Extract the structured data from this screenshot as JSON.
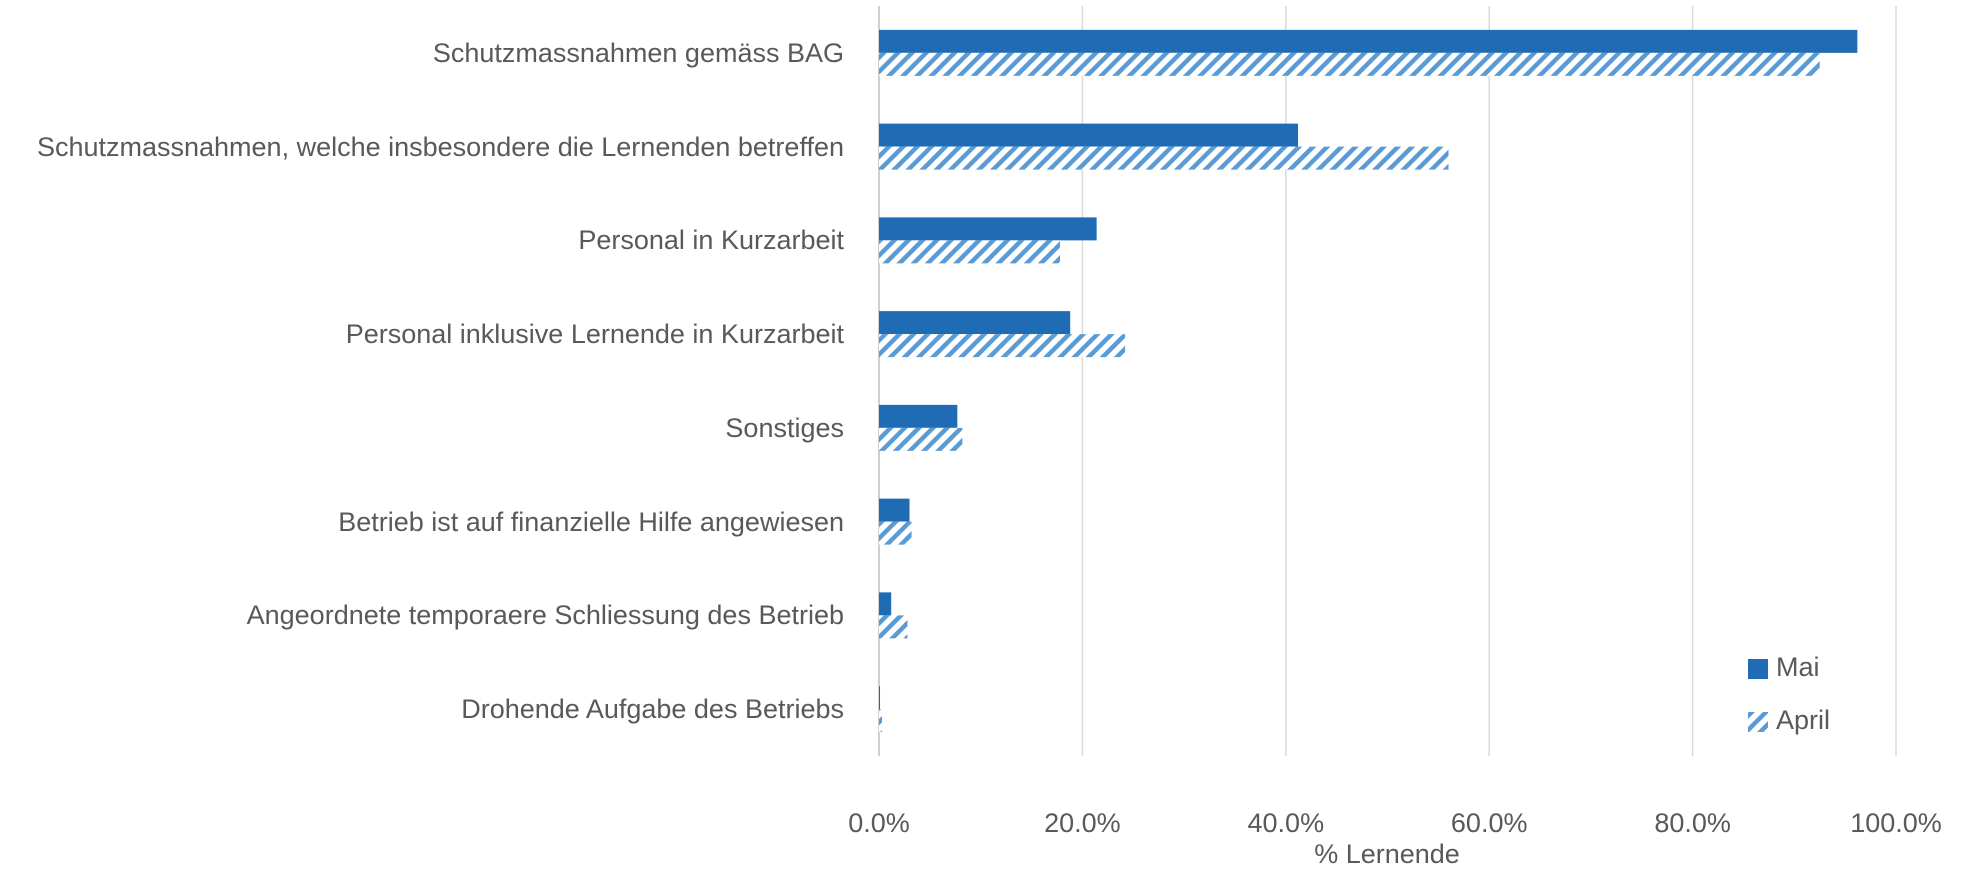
{
  "chart_data": {
    "type": "bar",
    "orientation": "horizontal",
    "categories": [
      "Schutzmassnahmen gemäss BAG",
      "Schutzmassnahmen, welche insbesondere die Lernenden betreffen",
      "Personal in Kurzarbeit",
      "Personal inklusive Lernende in Kurzarbeit",
      "Sonstiges",
      "Betrieb ist auf finanzielle Hilfe angewiesen",
      "Angeordnete temporaere Schliessung des Betrieb",
      "Drohende Aufgabe des Betriebs"
    ],
    "series": [
      {
        "name": "Mai",
        "color": "#1f6cb5",
        "pattern": "solid",
        "values": [
          96.2,
          41.2,
          21.4,
          18.8,
          7.7,
          3.0,
          1.2,
          0.1
        ]
      },
      {
        "name": "April",
        "color": "#5b9bd5",
        "pattern": "hatched",
        "values": [
          92.5,
          56.0,
          17.8,
          24.2,
          8.2,
          3.2,
          2.8,
          0.3
        ]
      }
    ],
    "x_label": "% Lernende",
    "xlim": [
      0,
      100
    ],
    "xticks": [
      {
        "value": 0,
        "label": "0.0%"
      },
      {
        "value": 20,
        "label": "20.0%"
      },
      {
        "value": 40,
        "label": "40.0%"
      },
      {
        "value": 60,
        "label": "60.0%"
      },
      {
        "value": 80,
        "label": "80.0%"
      },
      {
        "value": 100,
        "label": "100.0%"
      }
    ],
    "grid": true,
    "legend": "lower right"
  }
}
